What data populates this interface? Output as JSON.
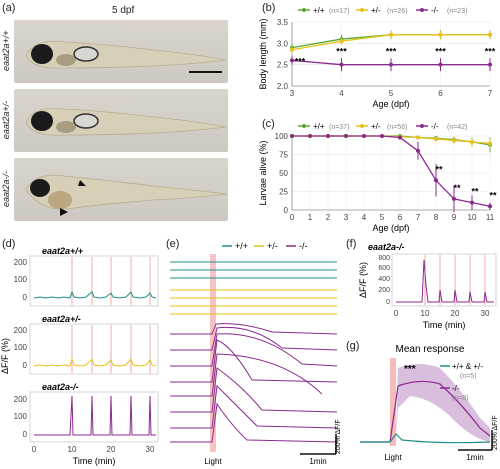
{
  "panels": {
    "a": {
      "label": "(a)",
      "title": "5 dpf",
      "genotypes": [
        "eaat2a+/+",
        "eaat2a+/-",
        "eaat2a-/-"
      ]
    },
    "b": {
      "label": "(b)"
    },
    "c": {
      "label": "(c)"
    },
    "d": {
      "label": "(d)",
      "traces": [
        "eaat2a+/+",
        "eaat2a+/-",
        "eaat2a-/-"
      ],
      "ylabel": "ΔF/F (%)",
      "xlabel": "Time (min)",
      "yticks": [
        "200",
        "100",
        "0"
      ],
      "xticks": [
        "0",
        "10",
        "20",
        "30"
      ]
    },
    "e": {
      "label": "(e)",
      "light": "Light",
      "scale_y": "200% ΔF/F",
      "scale_x": "1min"
    },
    "f": {
      "label": "(f)",
      "trace": "eaat2a-/-",
      "ylabel": "ΔF/F (%)",
      "xlabel": "Time (min)",
      "yticks": [
        "800",
        "600",
        "400",
        "200",
        "0"
      ],
      "xticks": [
        "0",
        "10",
        "20",
        "30"
      ]
    },
    "g": {
      "label": "(g)",
      "title": "Mean response",
      "light": "Light",
      "stars": "***",
      "legend_wt": "+/+ & +/-",
      "legend_wt_n": "(n=5)",
      "legend_mut": "-/-",
      "legend_mut_n": "(n=8)",
      "scale_y": "200% ΔF/F",
      "scale_x": "1min"
    }
  },
  "legend_e": {
    "wt": "+/+",
    "het": "+/-",
    "mut": "-/-"
  },
  "colors": {
    "wt": "#1f8f8a",
    "het": "#e8c21a",
    "mut": "#8a2a8e",
    "wt_b": "#5aa832",
    "light": "#f2a9a9"
  },
  "chart_data": [
    {
      "type": "line",
      "panel": "b",
      "xlabel": "Age (dpf)",
      "ylabel": "Body length (mm)",
      "x": [
        3,
        4,
        5,
        6,
        7
      ],
      "xticks": [
        "3",
        "4",
        "5",
        "6",
        "7"
      ],
      "yticks": [
        "2.0",
        "2.5",
        "3.0",
        "3.5"
      ],
      "ylim": [
        2.0,
        3.5
      ],
      "legend": [
        "+/+",
        "(n=17)",
        "+/-",
        "(n=26)",
        "-/-",
        "(n=23)"
      ],
      "series": [
        {
          "name": "+/+",
          "values": [
            2.9,
            3.1,
            3.2,
            3.2,
            3.2
          ]
        },
        {
          "name": "+/-",
          "values": [
            2.85,
            3.05,
            3.2,
            3.2,
            3.2
          ]
        },
        {
          "name": "-/-",
          "values": [
            2.6,
            2.5,
            2.5,
            2.5,
            2.5
          ]
        }
      ],
      "annotations": [
        "***",
        "***",
        "***",
        "***",
        "***"
      ]
    },
    {
      "type": "line",
      "panel": "c",
      "xlabel": "Age (dpf)",
      "ylabel": "Larvae alive (%)",
      "x": [
        0,
        1,
        2,
        3,
        4,
        5,
        6,
        7,
        8,
        9,
        10,
        11
      ],
      "xticks": [
        "0",
        "1",
        "2",
        "3",
        "4",
        "5",
        "6",
        "7",
        "8",
        "9",
        "10",
        "11"
      ],
      "yticks": [
        "0",
        "25",
        "50",
        "75",
        "100"
      ],
      "ylim": [
        0,
        100
      ],
      "legend": [
        "+/+",
        "(n=37)",
        "+/-",
        "(n=56)",
        "-/-",
        "(n=42)"
      ],
      "series": [
        {
          "name": "+/+",
          "values": [
            100,
            100,
            100,
            100,
            100,
            100,
            100,
            98,
            97,
            95,
            92,
            88
          ]
        },
        {
          "name": "+/-",
          "values": [
            100,
            100,
            100,
            100,
            100,
            100,
            99,
            98,
            96,
            94,
            92,
            90
          ]
        },
        {
          "name": "-/-",
          "values": [
            100,
            100,
            100,
            100,
            100,
            100,
            98,
            80,
            40,
            15,
            10,
            5
          ]
        }
      ],
      "annotations": [
        "**",
        "**",
        "**",
        "**"
      ]
    }
  ]
}
